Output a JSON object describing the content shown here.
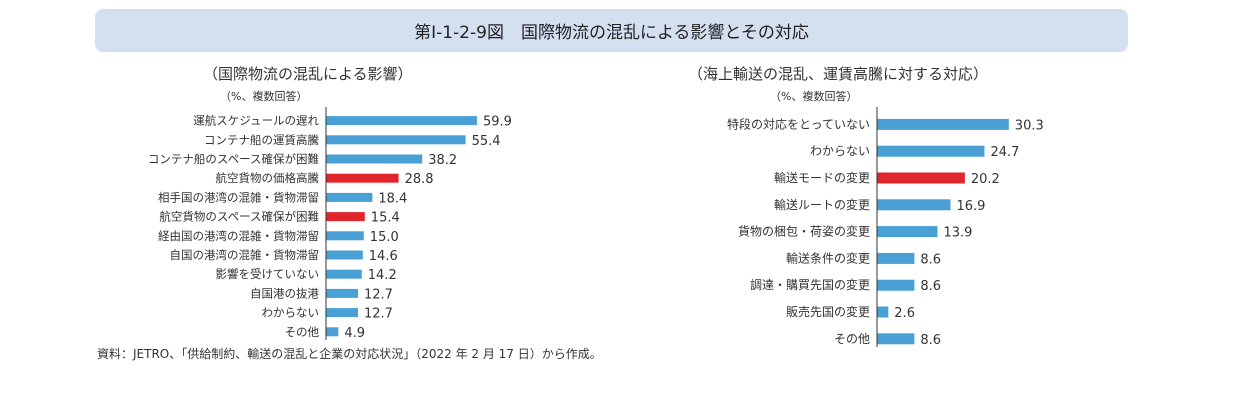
{
  "header": {
    "title": "第Ⅰ-1-2-9図　国際物流の混乱による影響とその対応"
  },
  "colors": {
    "bar": "#4aa0d5",
    "highlight": "#e0262b",
    "axis": "#333333",
    "banner": "#d4dff0"
  },
  "chart_data": [
    {
      "type": "bar",
      "orientation": "horizontal",
      "title": "（国際物流の混乱による影響）",
      "unit_label": "（%、複数回答）",
      "categories": [
        "運航スケジュールの遅れ",
        "コンテナ船の運賃高騰",
        "コンテナ船のスペース確保が困難",
        "航空貨物の価格高騰",
        "相手国の港湾の混雑・貨物滞留",
        "航空貨物のスペース確保が困難",
        "経由国の港湾の混雑・貨物滞留",
        "自国の港湾の混雑・貨物滞留",
        "影響を受けていない",
        "自国港の抜港",
        "わからない",
        "その他"
      ],
      "values": [
        59.9,
        55.4,
        38.2,
        28.8,
        18.4,
        15.4,
        15.0,
        14.6,
        14.2,
        12.7,
        12.7,
        4.9
      ],
      "value_labels": [
        "59.9",
        "55.4",
        "38.2",
        "28.8",
        "18.4",
        "15.4",
        "15.0",
        "14.6",
        "14.2",
        "12.7",
        "12.7",
        "4.9"
      ],
      "highlight": [
        "航空貨物の価格高騰",
        "航空貨物のスペース確保が困難"
      ],
      "xlim": [
        0,
        100
      ],
      "grid": false,
      "legend": "none"
    },
    {
      "type": "bar",
      "orientation": "horizontal",
      "title": "（海上輸送の混乱、運賃高騰に対する対応）",
      "unit_label": "（%、複数回答）",
      "categories": [
        "特段の対応をとっていない",
        "わからない",
        "輸送モードの変更",
        "輸送ルートの変更",
        "貨物の梱包・荷姿の変更",
        "輸送条件の変更",
        "調達・購買先国の変更",
        "販売先国の変更",
        "その他"
      ],
      "values": [
        30.3,
        24.7,
        20.2,
        16.9,
        13.9,
        8.6,
        8.6,
        2.6,
        8.6
      ],
      "value_labels": [
        "30.3",
        "24.7",
        "20.2",
        "16.9",
        "13.9",
        "8.6",
        "8.6",
        "2.6",
        "8.6"
      ],
      "highlight": [
        "輸送モードの変更"
      ],
      "xlim": [
        0,
        100
      ],
      "grid": false,
      "legend": "none"
    }
  ],
  "footer": {
    "source": "資料：JETRO、「供給制約、輸送の混乱と企業の対応状況」（2022 年 2 月 17 日）から作成。"
  }
}
